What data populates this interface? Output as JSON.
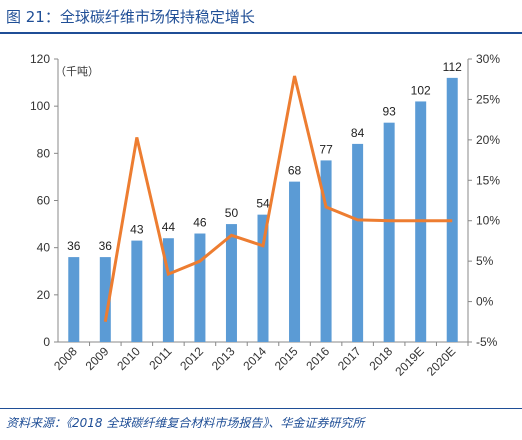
{
  "figure": {
    "title": "图 21：全球碳纤维市场保持稳定增长",
    "source": "资料来源：《2018 全球碳纤维复合材料市场报告》、华金证券研究所",
    "unit_label": "（千吨）"
  },
  "chart_data": {
    "type": "bar",
    "categories": [
      "2008",
      "2009",
      "2010",
      "2011",
      "2012",
      "2013",
      "2014",
      "2015",
      "2016",
      "2017",
      "2018",
      "2019E",
      "2020E"
    ],
    "series": [
      {
        "type": "bar",
        "axis": "left",
        "color": "#5b9bd5",
        "values": [
          36,
          36,
          43,
          44,
          46,
          50,
          54,
          68,
          77,
          84,
          93,
          102,
          112
        ],
        "labels": [
          "36",
          "36",
          "43",
          "44",
          "46",
          "50",
          "54",
          "68",
          "77",
          "84",
          "93",
          "102",
          "112"
        ]
      },
      {
        "type": "line",
        "axis": "right",
        "color": "#ed7d31",
        "values": [
          null,
          -2.5,
          20.3,
          3.4,
          5.0,
          8.2,
          6.9,
          27.9,
          11.7,
          10.1,
          10.0,
          10.0,
          10.0
        ]
      }
    ],
    "ylim_left": [
      0,
      120
    ],
    "ylim_right": [
      -5,
      30
    ],
    "yticks_left": [
      "0",
      "20",
      "40",
      "60",
      "80",
      "100",
      "120"
    ],
    "yticks_right": [
      "-5%",
      "0%",
      "5%",
      "10%",
      "15%",
      "20%",
      "25%",
      "30%"
    ],
    "grid": false,
    "legend": "none"
  }
}
